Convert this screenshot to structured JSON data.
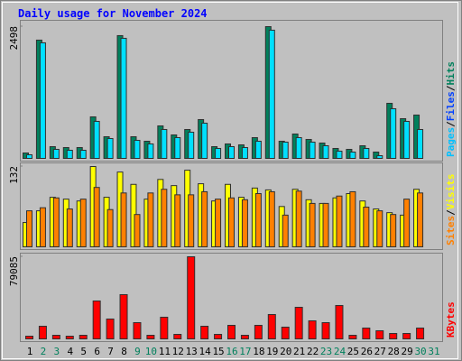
{
  "title": "Daily usage for November 2024",
  "chart_data": [
    {
      "type": "bar",
      "ylim": [
        0,
        2498
      ],
      "yticks": [
        2498
      ],
      "separator": "/",
      "legend": [
        {
          "text": "Pages",
          "color": "#00c0ff"
        },
        {
          "text": "Files",
          "color": "#0040ff"
        },
        {
          "text": "Hits",
          "color": "#00805c"
        }
      ],
      "series": [
        {
          "name": "Hits",
          "color": "#00805c",
          "values": [
            119,
            2244,
            238,
            221,
            221,
            799,
            425,
            2329,
            425,
            340,
            629,
            459,
            561,
            748,
            238,
            289,
            272,
            408,
            2498,
            340,
            476,
            374,
            306,
            204,
            187,
            255,
            136,
            1054,
            765,
            833,
            0
          ]
        },
        {
          "name": "Pages",
          "color": "#00e0ff",
          "values": [
            85,
            2193,
            187,
            170,
            170,
            714,
            391,
            2278,
            357,
            289,
            561,
            408,
            510,
            680,
            204,
            238,
            221,
            340,
            2431,
            323,
            408,
            323,
            255,
            153,
            136,
            204,
            68,
            952,
            714,
            561,
            0
          ]
        }
      ]
    },
    {
      "type": "bar",
      "ylim": [
        0,
        132
      ],
      "yticks": [
        132
      ],
      "separator": "/",
      "legend": [
        {
          "text": "Sites",
          "color": "#ff8000"
        },
        {
          "text": "Visits",
          "color": "#ffff00"
        }
      ],
      "series": [
        {
          "name": "Visits",
          "color": "#ffff00",
          "values": [
            41,
            60,
            82,
            79,
            76,
            132,
            82,
            123,
            103,
            79,
            111,
            101,
            126,
            104,
            76,
            103,
            82,
            97,
            94,
            67,
            95,
            78,
            72,
            81,
            88,
            76,
            63,
            57,
            53,
            95,
            0
          ]
        },
        {
          "name": "Sites",
          "color": "#ff8000",
          "values": [
            60,
            65,
            81,
            63,
            79,
            98,
            62,
            89,
            54,
            89,
            95,
            86,
            86,
            91,
            79,
            81,
            78,
            88,
            91,
            53,
            92,
            72,
            72,
            84,
            91,
            66,
            60,
            54,
            79,
            89,
            0
          ]
        }
      ]
    },
    {
      "type": "bar",
      "ylim": [
        0,
        79085
      ],
      "yticks": [
        79085
      ],
      "legend": [
        {
          "text": "KBytes",
          "color": "#ff0000"
        }
      ],
      "series": [
        {
          "name": "KBytes",
          "color": "#ff0000",
          "values": [
            3440,
            12900,
            4300,
            3440,
            4300,
            36980,
            19780,
            43000,
            16340,
            4300,
            21500,
            5160,
            79085,
            12900,
            5160,
            13760,
            4300,
            13760,
            24080,
            12040,
            30960,
            18060,
            16340,
            32680,
            4300,
            11180,
            8600,
            6020,
            6020,
            11180,
            0
          ]
        }
      ],
      "categories": [
        "1",
        "2",
        "3",
        "4",
        "5",
        "6",
        "7",
        "8",
        "9",
        "10",
        "11",
        "12",
        "13",
        "14",
        "15",
        "16",
        "17",
        "18",
        "19",
        "20",
        "21",
        "22",
        "23",
        "24",
        "25",
        "26",
        "27",
        "28",
        "29",
        "30",
        "31"
      ],
      "category_colors": [
        "#000000",
        "#00805c",
        "#00805c",
        "#000000",
        "#000000",
        "#000000",
        "#000000",
        "#000000",
        "#00805c",
        "#00805c",
        "#000000",
        "#000000",
        "#000000",
        "#000000",
        "#000000",
        "#00805c",
        "#00805c",
        "#000000",
        "#000000",
        "#000000",
        "#000000",
        "#000000",
        "#00805c",
        "#00805c",
        "#000000",
        "#000000",
        "#000000",
        "#000000",
        "#000000",
        "#00805c",
        "#00805c"
      ]
    }
  ]
}
